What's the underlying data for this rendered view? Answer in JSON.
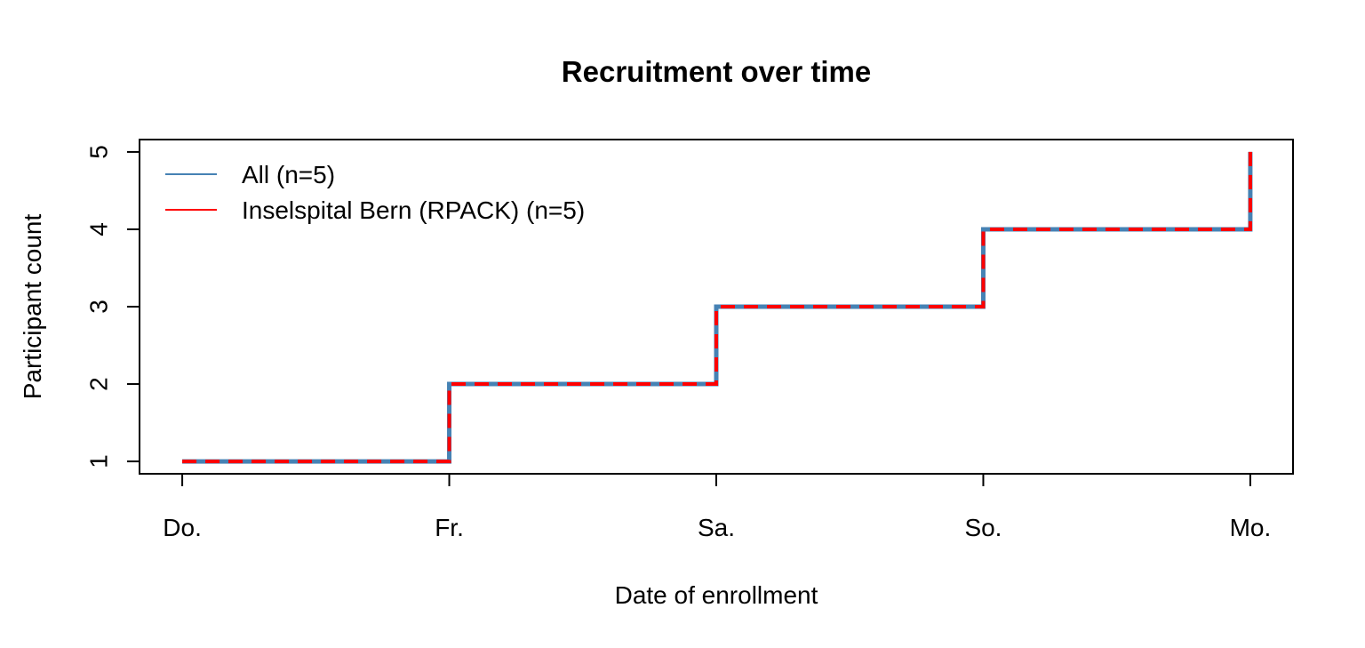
{
  "chart_data": {
    "type": "line",
    "step": true,
    "title": "Recruitment over time",
    "xlabel": "Date of enrollment",
    "ylabel": "Participant count",
    "categories": [
      "Do.",
      "Fr.",
      "Sa.",
      "So.",
      "Mo."
    ],
    "x": [
      0,
      1,
      2,
      3,
      4
    ],
    "xlim": [
      -0.16,
      4.16
    ],
    "ylim": [
      0.84,
      5.16
    ],
    "yticks": [
      1,
      2,
      3,
      4,
      5
    ],
    "grid": false,
    "legend_position": "top-left",
    "series": [
      {
        "name": "All (n=5)",
        "values": [
          1,
          2,
          3,
          4,
          5
        ],
        "color": "#4682B4",
        "style": "solid"
      },
      {
        "name": "Inselspital Bern (RPACK) (n=5)",
        "values": [
          1,
          2,
          3,
          4,
          5
        ],
        "color": "#FF0000",
        "style": "dashed"
      }
    ]
  }
}
